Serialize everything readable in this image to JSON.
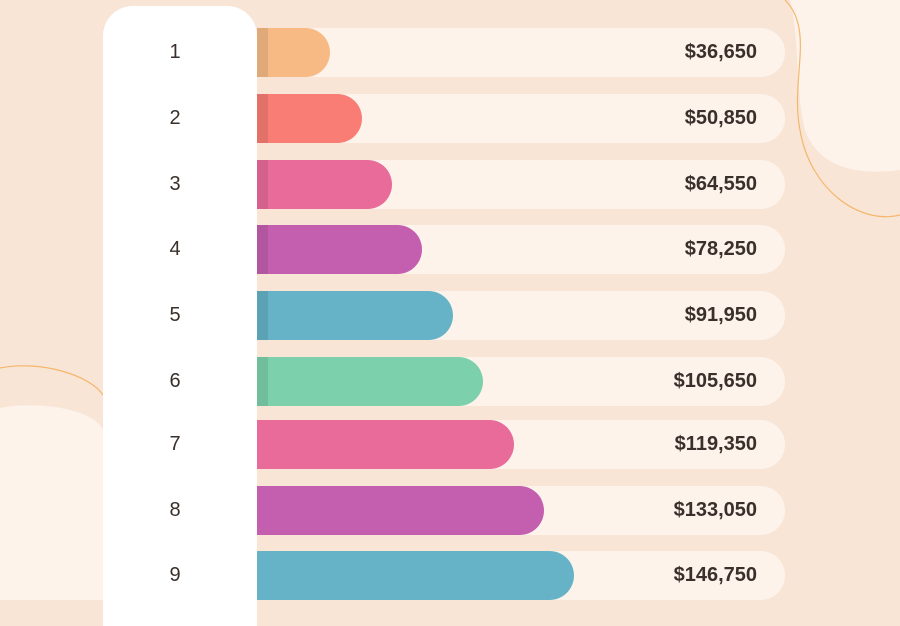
{
  "chart_data": {
    "type": "bar",
    "orientation": "horizontal",
    "categories": [
      "1",
      "2",
      "3",
      "4",
      "5",
      "6",
      "7",
      "8",
      "9"
    ],
    "values": [
      36650,
      50850,
      64550,
      78250,
      91950,
      105650,
      119350,
      133050,
      146750
    ],
    "labels": [
      "$36,650",
      "$50,850",
      "$64,550",
      "$78,250",
      "$91,950",
      "$105,650",
      "$119,350",
      "$133,050",
      "$146,750"
    ],
    "colors": [
      "#f7ba85",
      "#f97d74",
      "#e86b99",
      "#c45fb0",
      "#66b3c7",
      "#7cd1ac",
      "#e86b99",
      "#c45fb0",
      "#66b3c7"
    ],
    "stripe": [
      true,
      true,
      true,
      true,
      true,
      true,
      false,
      false,
      false
    ],
    "title": "",
    "xlabel": "",
    "ylabel": "",
    "grid": false
  },
  "colors": {
    "background": "#f8e5d6",
    "track": "#fdf3eb",
    "panel": "#ffffff",
    "text": "#3a302b",
    "accent_line": "#f5b66a"
  }
}
